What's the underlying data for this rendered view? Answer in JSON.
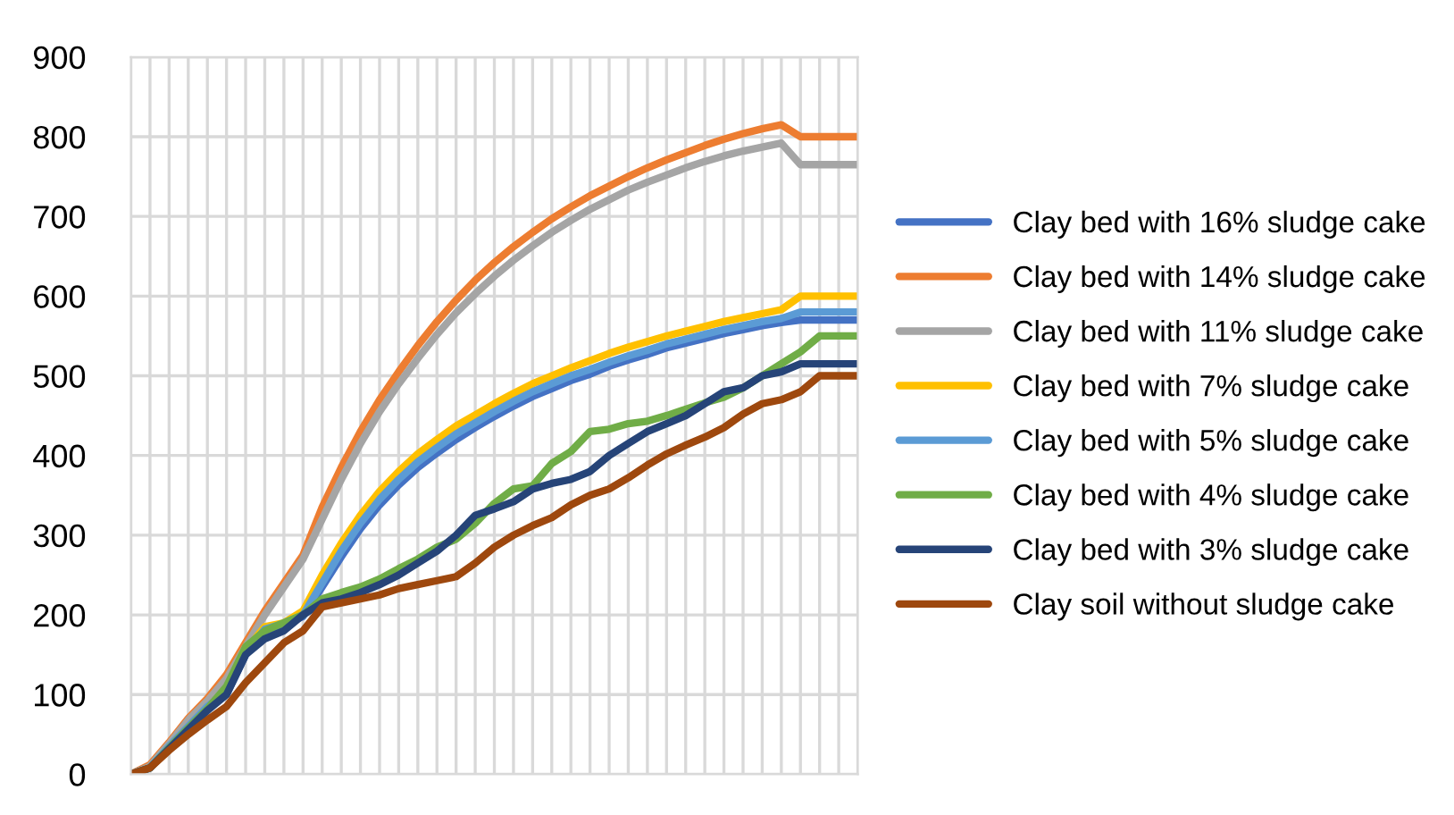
{
  "chart_data": {
    "type": "line",
    "categories": [
      null,
      null,
      null,
      null,
      null,
      null,
      null,
      null,
      null,
      null,
      null,
      null,
      null,
      null,
      null,
      null,
      null,
      null,
      null,
      null,
      null,
      null,
      null,
      null,
      null,
      null,
      null,
      null,
      null,
      null,
      null,
      null,
      null,
      null,
      null,
      null,
      null,
      null,
      null
    ],
    "ylim": [
      0,
      900
    ],
    "yticks": [
      0,
      100,
      200,
      300,
      400,
      500,
      600,
      700,
      800,
      900
    ],
    "grid": true,
    "legend": "right",
    "tick_labels": "y",
    "series": [
      {
        "name": "Clay bed with 16% sludge cake",
        "color": "#4472c4",
        "values": [
          0,
          8,
          35,
          60,
          85,
          100,
          150,
          180,
          188,
          198,
          235,
          273,
          308,
          338,
          363,
          385,
          403,
          420,
          435,
          449,
          462,
          474,
          484,
          494,
          502,
          512,
          520,
          527,
          535,
          541,
          547,
          553,
          558,
          563,
          567,
          570,
          570,
          570,
          570
        ]
      },
      {
        "name": "Clay bed with 14% sludge cake",
        "color": "#ed7d31",
        "values": [
          0,
          12,
          40,
          70,
          95,
          125,
          165,
          205,
          240,
          275,
          335,
          385,
          430,
          470,
          505,
          538,
          568,
          595,
          620,
          642,
          662,
          680,
          697,
          712,
          726,
          738,
          750,
          761,
          771,
          780,
          789,
          797,
          804,
          810,
          815,
          800,
          800,
          800,
          800
        ]
      },
      {
        "name": "Clay bed with 11% sludge cake",
        "color": "#a5a5a5",
        "values": [
          0,
          10,
          38,
          68,
          92,
          120,
          160,
          200,
          235,
          270,
          320,
          370,
          415,
          455,
          490,
          522,
          552,
          579,
          603,
          625,
          645,
          663,
          680,
          695,
          709,
          721,
          733,
          743,
          752,
          761,
          769,
          776,
          782,
          787,
          792,
          765,
          765,
          765,
          765
        ]
      },
      {
        "name": "Clay bed with 7% sludge cake",
        "color": "#ffc000",
        "values": [
          null,
          null,
          null,
          null,
          null,
          105,
          155,
          185,
          190,
          205,
          250,
          290,
          325,
          355,
          380,
          402,
          420,
          437,
          451,
          465,
          478,
          490,
          500,
          510,
          519,
          528,
          536,
          543,
          550,
          556,
          562,
          568,
          573,
          578,
          583,
          600,
          600,
          600,
          600
        ]
      },
      {
        "name": "Clay bed with 5% sludge cake",
        "color": "#5b9bd5",
        "values": [
          0,
          8,
          35,
          60,
          85,
          103,
          152,
          182,
          189,
          200,
          240,
          280,
          315,
          345,
          370,
          392,
          410,
          427,
          441,
          455,
          468,
          480,
          490,
          500,
          508,
          517,
          525,
          532,
          540,
          546,
          552,
          558,
          563,
          568,
          572,
          580,
          580,
          580,
          580
        ]
      },
      {
        "name": "Clay bed with 4% sludge cake",
        "color": "#70ad47",
        "values": [
          0,
          8,
          33,
          58,
          82,
          110,
          160,
          180,
          190,
          200,
          220,
          228,
          235,
          245,
          258,
          270,
          285,
          295,
          315,
          340,
          358,
          362,
          390,
          405,
          430,
          433,
          440,
          443,
          450,
          458,
          466,
          473,
          485,
          500,
          515,
          530,
          550,
          550,
          550
        ]
      },
      {
        "name": "Clay bed with 3% sludge cake",
        "color": "#264478",
        "values": [
          0,
          8,
          32,
          56,
          80,
          100,
          150,
          170,
          180,
          200,
          215,
          220,
          228,
          238,
          250,
          265,
          280,
          300,
          325,
          333,
          342,
          358,
          365,
          370,
          380,
          400,
          415,
          430,
          440,
          450,
          465,
          480,
          485,
          500,
          505,
          515,
          515,
          515,
          515
        ]
      },
      {
        "name": "Clay soil without sludge cake",
        "color": "#9e480e",
        "values": [
          0,
          8,
          30,
          50,
          68,
          85,
          115,
          140,
          165,
          180,
          210,
          215,
          220,
          225,
          233,
          238,
          243,
          248,
          265,
          285,
          300,
          312,
          322,
          338,
          350,
          358,
          372,
          388,
          402,
          413,
          423,
          435,
          452,
          465,
          470,
          480,
          500,
          500,
          500
        ]
      }
    ]
  }
}
